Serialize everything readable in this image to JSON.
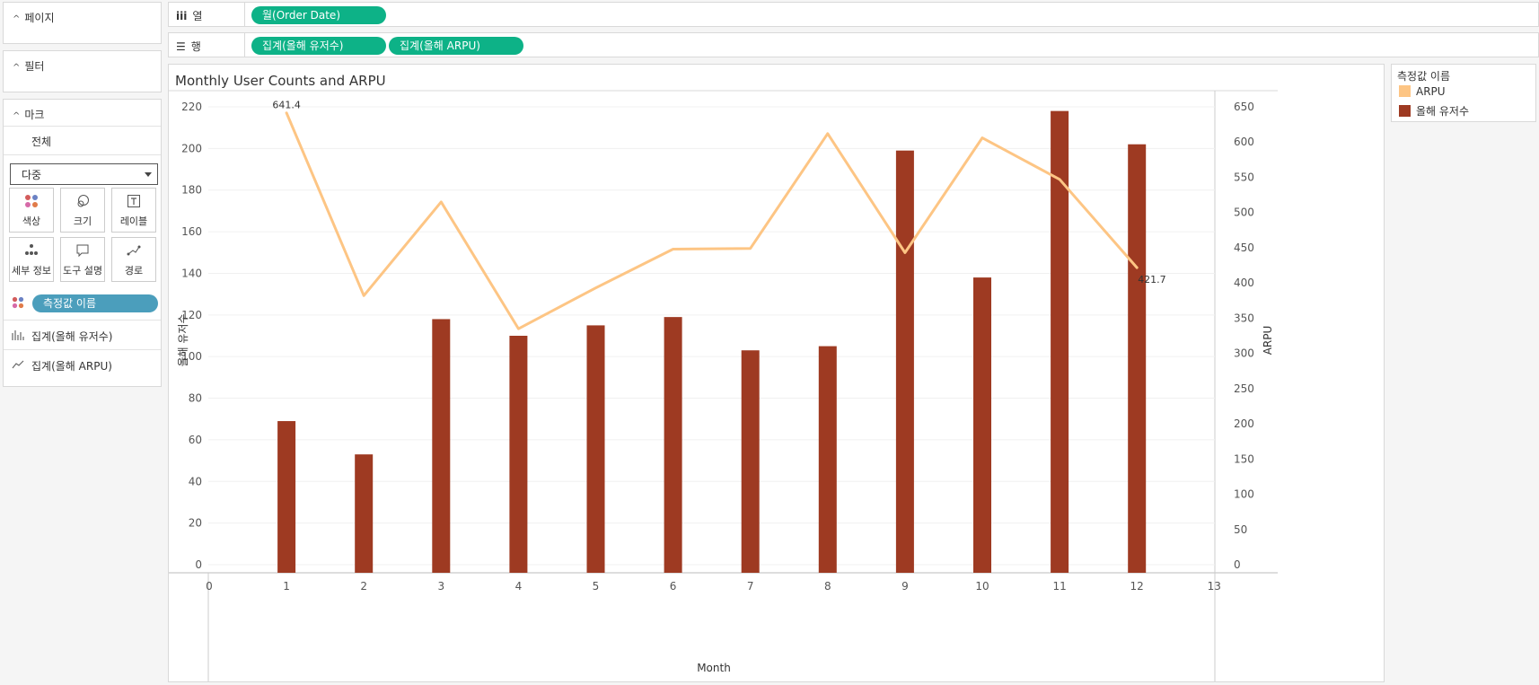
{
  "sidebar": {
    "pages_label": "페이지",
    "filters_label": "필터",
    "marks_label": "마크",
    "marks_all": "전체",
    "mark_type": "다중",
    "buttons": {
      "color": "색상",
      "size": "크기",
      "label": "레이블",
      "detail": "세부 정보",
      "tooltip": "도구 설명",
      "path": "경로"
    },
    "color_pill": "측정값 이름",
    "agg_users": "집계(올해 유저수)",
    "agg_arpu": "집계(올해 ARPU)"
  },
  "shelves": {
    "columns_label": "열",
    "rows_label": "행",
    "columns_pill": "월(Order Date)",
    "rows_pills": [
      "집계(올해 유저수)",
      "집계(올해 ARPU)"
    ]
  },
  "legend": {
    "title": "측정값 이름",
    "items": [
      {
        "label": "ARPU",
        "color": "#fdc584"
      },
      {
        "label": "올해 유저수",
        "color": "#9e3a22"
      }
    ]
  },
  "colors": {
    "bar": "#9e3a22",
    "line": "#fdc584",
    "pill_green": "#0db287",
    "pill_blue": "#4b9ebc"
  },
  "chart_data": {
    "type": "bar+line",
    "title": "Monthly User Counts and ARPU",
    "xlabel": "Month",
    "ylabel_left": "올해 유저수",
    "ylabel_right": "ARPU",
    "xlim": [
      0,
      13
    ],
    "x_ticks": [
      0,
      1,
      2,
      3,
      4,
      5,
      6,
      7,
      8,
      9,
      10,
      11,
      12,
      13
    ],
    "ylim_left": [
      0,
      220
    ],
    "yticks_left": [
      0,
      20,
      40,
      60,
      80,
      100,
      120,
      140,
      160,
      180,
      200,
      220
    ],
    "ylim_right": [
      0,
      650
    ],
    "yticks_right": [
      0,
      50,
      100,
      150,
      200,
      250,
      300,
      350,
      400,
      450,
      500,
      550,
      600,
      650
    ],
    "x": [
      1,
      2,
      3,
      4,
      5,
      6,
      7,
      8,
      9,
      10,
      11,
      12
    ],
    "series": [
      {
        "name": "올해 유저수",
        "type": "bar",
        "axis": "left",
        "values": [
          69,
          53,
          118,
          110,
          115,
          119,
          103,
          105,
          199,
          138,
          218,
          202
        ]
      },
      {
        "name": "ARPU",
        "type": "line",
        "axis": "right",
        "values": [
          641.4,
          382,
          515,
          335,
          393,
          448,
          449,
          612,
          443,
          606,
          547,
          421.7
        ]
      }
    ],
    "annotations": [
      {
        "x": 1,
        "text": "641.4"
      },
      {
        "x": 12,
        "text": "421.7"
      }
    ]
  }
}
